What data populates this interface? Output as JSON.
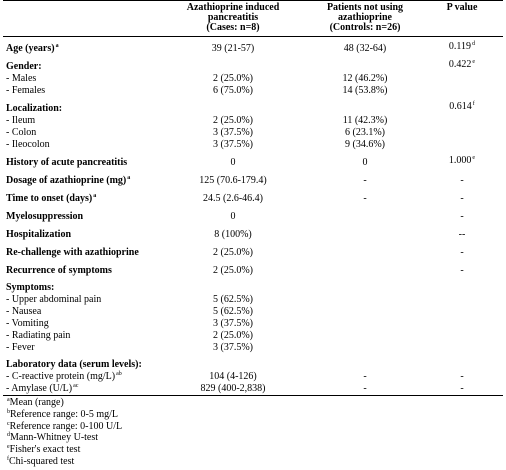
{
  "header": {
    "cases": [
      "Azathioprine induced",
      "pancreatitis",
      "(Cases: n=8)"
    ],
    "controls": [
      "Patients not using",
      "azathioprine",
      "(Controls: n=26)"
    ],
    "p": [
      "P value"
    ]
  },
  "rows": [
    {
      "label": "Age (years)",
      "label_sup": "a",
      "cases": "39 (21-57)",
      "controls": "48 (32-64)",
      "p": "0.119",
      "p_sup": "d"
    },
    {
      "label": "Gender:",
      "p": "0.422",
      "p_sup": "e"
    },
    {
      "label": "- Males",
      "cases": "2 (25.0%)",
      "controls": "12 (46.2%)"
    },
    {
      "label": "- Females",
      "cases": "6 (75.0%)",
      "controls": "14 (53.8%)"
    },
    {
      "label": "Localization:",
      "p": "0.614",
      "p_sup": "f"
    },
    {
      "label": "- Ileum",
      "cases": "2 (25.0%)",
      "controls": "11 (42.3%)"
    },
    {
      "label": "- Colon",
      "cases": "3 (37.5%)",
      "controls": "6 (23.1%)"
    },
    {
      "label": "- Ileocolon",
      "cases": "3 (37.5%)",
      "controls": "9 (34.6%)"
    },
    {
      "label": "History of acute pancreatitis",
      "cases": "0",
      "controls": "0",
      "p": "1.000",
      "p_sup": "e"
    },
    {
      "label": "Dosage of azathioprine (mg)",
      "label_sup": "a",
      "cases": "125 (70.6-179.4)",
      "controls": "-",
      "p": "-"
    },
    {
      "label": "Time to onset (days)",
      "label_sup": "a",
      "cases": "24.5 (2.6-46.4)",
      "controls": "-",
      "p": "-"
    },
    {
      "label": "Myelosuppression",
      "cases": "0",
      "p": "-"
    },
    {
      "label": "Hospitalization",
      "cases": "8 (100%)",
      "p": "--"
    },
    {
      "label": "Re-challenge with azathioprine",
      "cases": "2 (25.0%)",
      "p": "-"
    },
    {
      "label": "Recurrence of symptoms",
      "cases": "2 (25.0%)",
      "p": "-"
    },
    {
      "label": "Symptoms:"
    },
    {
      "label": "- Upper abdominal pain",
      "cases": "5 (62.5%)"
    },
    {
      "label": "- Nausea",
      "cases": "5 (62.5%)"
    },
    {
      "label": "- Vomiting",
      "cases": "3 (37.5%)"
    },
    {
      "label": "- Radiating pain",
      "cases": "2 (25.0%)"
    },
    {
      "label": "- Fever",
      "cases": "3 (37.5%)"
    },
    {
      "label": "Laboratory data (serum levels):"
    },
    {
      "label": "- C-reactive protein (mg/L)",
      "label_sup": "ab",
      "cases": "104 (4-126)",
      "controls": "-",
      "p": "-"
    },
    {
      "label": "- Amylase (U/L)",
      "label_sup": "ac",
      "cases": "829 (400-2,838)",
      "controls": "-",
      "p": "-"
    }
  ],
  "footnotes": [
    {
      "mark": "a",
      "text": "Mean (range)"
    },
    {
      "mark": "b",
      "text": "Reference range: 0-5 mg/L"
    },
    {
      "mark": "c",
      "text": "Reference range: 0-100 U/L"
    },
    {
      "mark": "d",
      "text": "Mann-Whitney U-test"
    },
    {
      "mark": "e",
      "text": "Fisher's exact test"
    },
    {
      "mark": "f",
      "text": "Chi-squared test"
    }
  ]
}
